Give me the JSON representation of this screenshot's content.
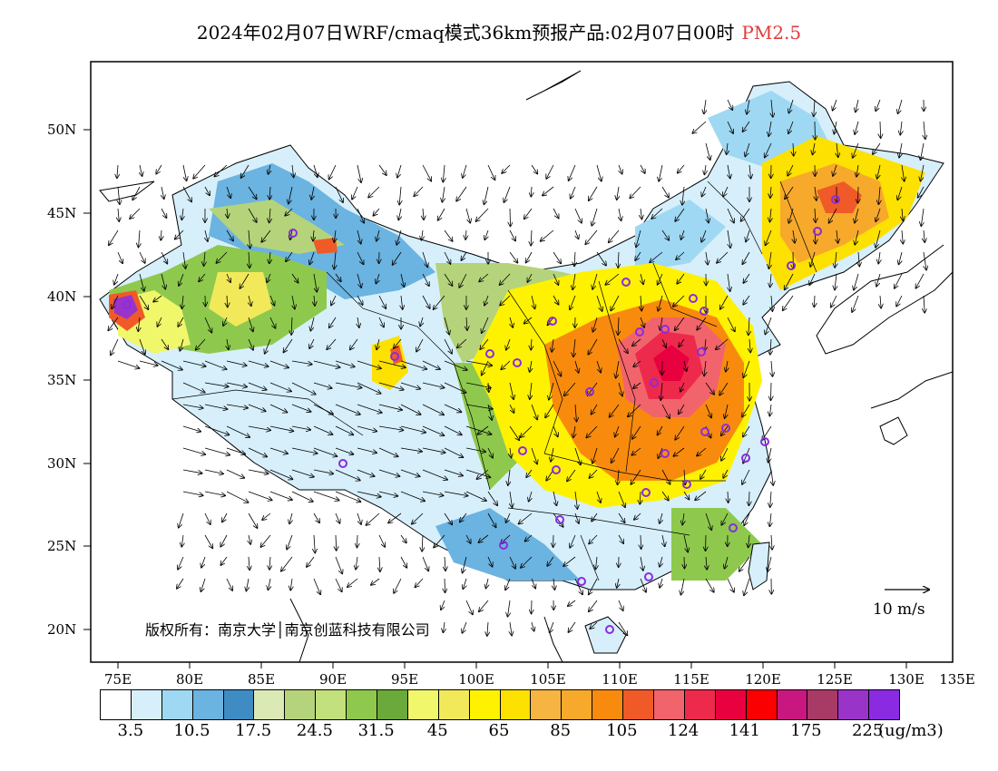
{
  "title": "2024年02月07日WRF/cmaq模式36km预报产品:02月07日00时",
  "species": "PM2.5",
  "species_color": "#e23b3b",
  "copyright": "版权所有：南京大学│南京创蓝科技有限公司",
  "wind_reference": "10 m/s",
  "lat_labels": [
    "50N",
    "45N",
    "40N",
    "35N",
    "30N",
    "25N",
    "20N"
  ],
  "lon_labels": [
    "75E",
    "80E",
    "85E",
    "90E",
    "95E",
    "100E",
    "105E",
    "110E",
    "115E",
    "120E",
    "125E",
    "130E",
    "135E"
  ],
  "legend": {
    "unit": "(ug/m3)",
    "colors": [
      "#ffffff",
      "#d6effb",
      "#9fd8f3",
      "#6bb3e0",
      "#3f8cc4",
      "#dbe9b5",
      "#b5d37a",
      "#c2e07c",
      "#8ec94d",
      "#6aa93a",
      "#f1f76a",
      "#f2e95a",
      "#fff200",
      "#fde100",
      "#f6b542",
      "#f7a92c",
      "#f88b0d",
      "#f05a28",
      "#f2646b",
      "#ee2a4c",
      "#e8003f",
      "#fb0000",
      "#c8177f",
      "#a83a66",
      "#9a34c8",
      "#8a2be2"
    ],
    "labels": [
      "3.5",
      "10.5",
      "17.5",
      "24.5",
      "31.5",
      "45",
      "65",
      "85",
      "105",
      "124",
      "141",
      "175",
      "225"
    ]
  }
}
